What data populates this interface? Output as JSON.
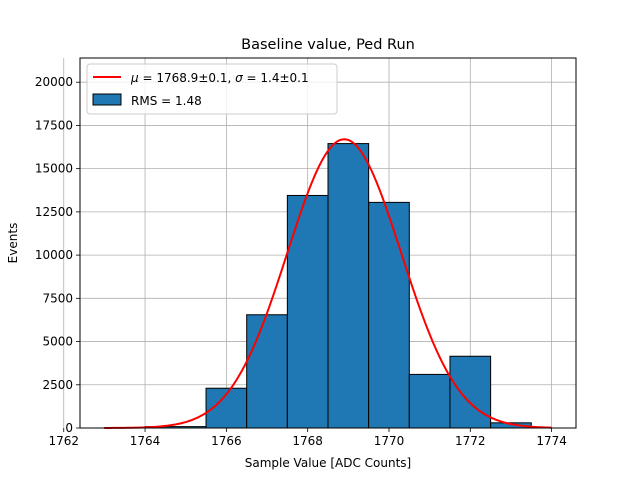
{
  "chart_data": {
    "type": "bar",
    "title": "Baseline value, Ped Run",
    "xlabel": "Sample Value [ADC Counts]",
    "ylabel": "Events",
    "xlim": [
      1762.4,
      1774.6
    ],
    "ylim": [
      0,
      21400
    ],
    "xticks": [
      1762,
      1764,
      1766,
      1768,
      1770,
      1772,
      1774
    ],
    "yticks": [
      0,
      2500,
      5000,
      7500,
      10000,
      12500,
      15000,
      17500,
      20000
    ],
    "grid": true,
    "legend_position": "upper-left",
    "bar_color": "#1f77b4",
    "fit_color": "#ff0000",
    "histogram": {
      "label": "RMS = 1.48",
      "bin_edges": [
        1763.0,
        1764.0,
        1765.5,
        1766.5,
        1767.5,
        1768.5,
        1769.5,
        1770.5,
        1771.5,
        1772.5,
        1773.5
      ],
      "counts": [
        20,
        80,
        2300,
        6550,
        13450,
        16450,
        13050,
        3100,
        4150,
        300
      ]
    },
    "fit": {
      "label_mu": "1768.9±0.1",
      "label_sigma": "1.4±0.1",
      "mu": 1768.9,
      "sigma": 1.4,
      "amplitude": 16700,
      "x_range": [
        1763.0,
        1774.0
      ]
    }
  }
}
